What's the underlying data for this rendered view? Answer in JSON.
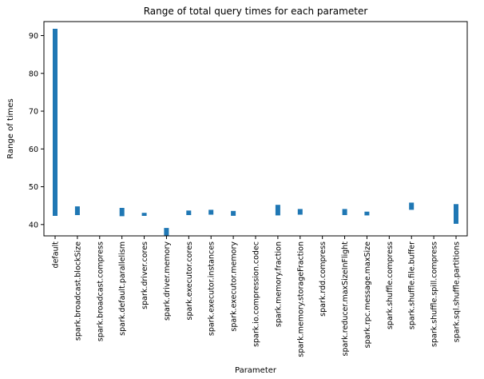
{
  "chart_data": {
    "type": "bar",
    "title": "Range of total query times for each parameter",
    "xlabel": "Parameter",
    "ylabel": "Range of times",
    "ylim": [
      37.0,
      93.7
    ],
    "yticks": [
      40,
      50,
      60,
      70,
      80,
      90
    ],
    "categories": [
      "default",
      "spark.broadcast.blockSize",
      "spark.broadcast.compress",
      "spark.default.parallelism",
      "spark.driver.cores",
      "spark.driver.memory",
      "spark.executor.cores",
      "spark.executor.instances",
      "spark.executor.memory",
      "spark.io.compression.codec",
      "spark.memory.fraction",
      "spark.memory.storageFraction",
      "spark.rdd.compress",
      "spark.reducer.maxSizeInFlight",
      "spark.rpc.message.maxSize",
      "spark.shuffle.compress",
      "spark.shuffle.file.buffer",
      "spark.shuffle.spill.compress",
      "spark.sql.shuffle.partitions"
    ],
    "series": [
      {
        "bottoms": [
          42.3,
          42.5,
          null,
          42.2,
          42.3,
          37.0,
          42.5,
          42.6,
          42.3,
          null,
          42.4,
          42.6,
          null,
          42.5,
          42.4,
          null,
          43.9,
          null,
          40.2
        ],
        "tops": [
          91.8,
          44.8,
          null,
          44.4,
          43.1,
          39.1,
          43.7,
          43.9,
          43.6,
          null,
          45.2,
          44.1,
          null,
          44.1,
          43.4,
          null,
          45.8,
          null,
          45.4
        ],
        "color": "#1f77b4"
      }
    ],
    "grid": false,
    "legend": "none"
  }
}
